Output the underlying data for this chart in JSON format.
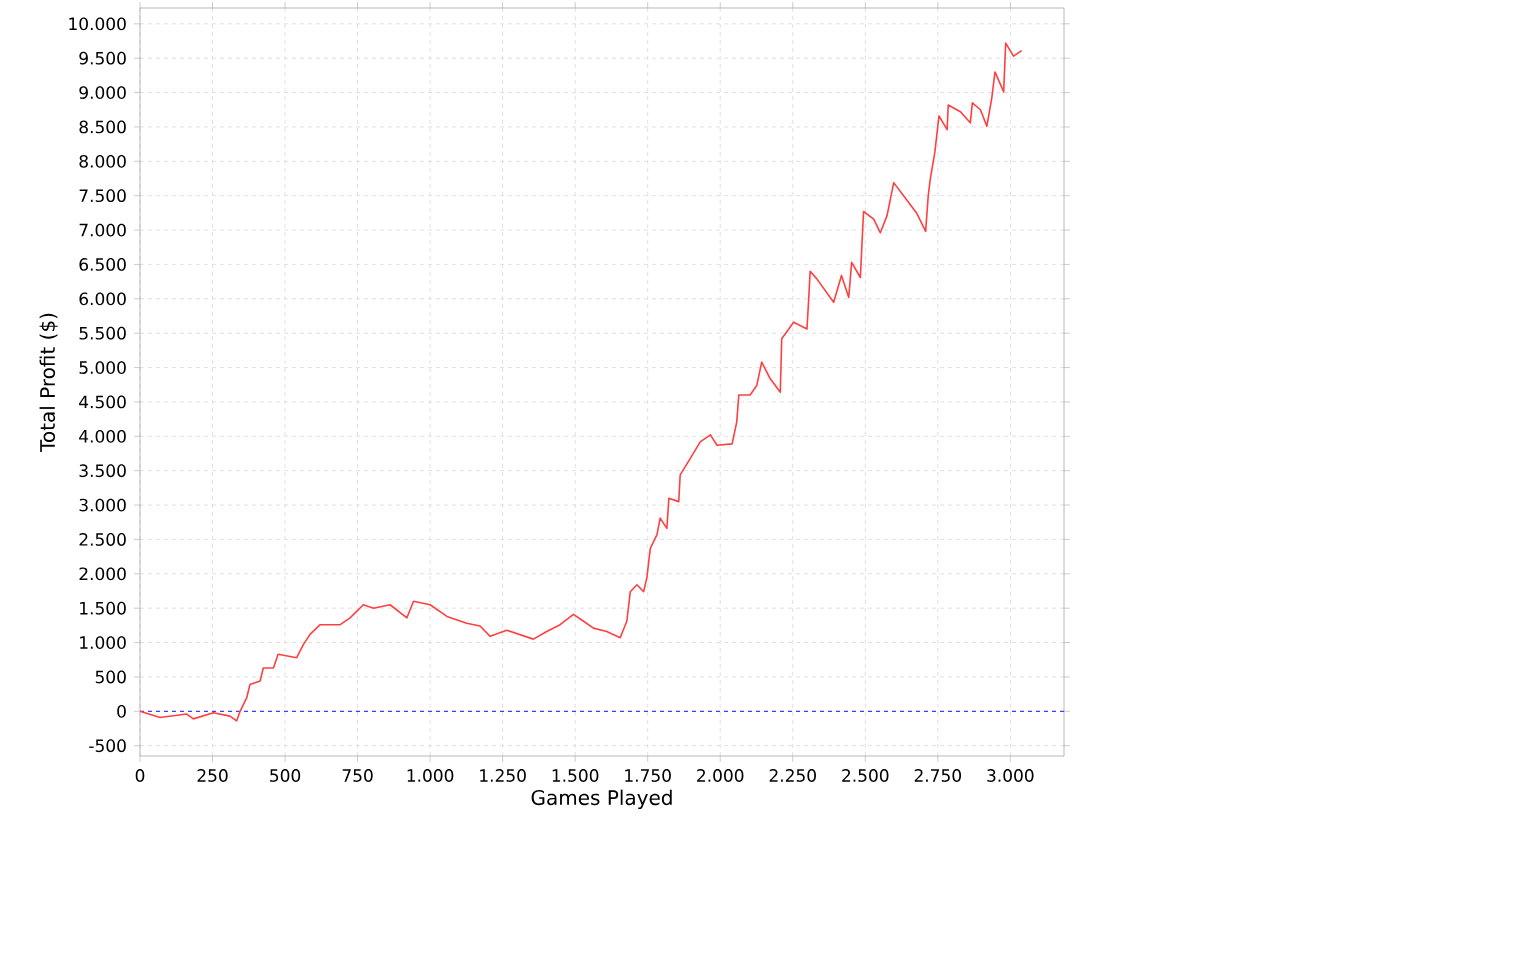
{
  "chart_data": {
    "type": "line",
    "xlabel": "Games Played",
    "ylabel": "Total Profit ($)",
    "x": [
      0,
      69,
      161,
      184,
      253,
      310,
      333,
      345,
      368,
      379,
      414,
      425,
      460,
      476,
      540,
      563,
      586,
      621,
      690,
      724,
      770,
      805,
      862,
      920,
      943,
      1000,
      1058,
      1126,
      1172,
      1207,
      1264,
      1356,
      1402,
      1448,
      1494,
      1529,
      1563,
      1609,
      1655,
      1678,
      1690,
      1713,
      1736,
      1747,
      1759,
      1782,
      1793,
      1816,
      1823,
      1857,
      1862,
      1897,
      1931,
      1966,
      1989,
      2041,
      2057,
      2064,
      2103,
      2126,
      2143,
      2172,
      2207,
      2212,
      2253,
      2299,
      2305,
      2310,
      2333,
      2391,
      2418,
      2443,
      2453,
      2483,
      2494,
      2529,
      2552,
      2575,
      2598,
      2632,
      2678,
      2708,
      2717,
      2724,
      2740,
      2754,
      2782,
      2786,
      2828,
      2862,
      2869,
      2897,
      2919,
      2936,
      2947,
      2977,
      2984,
      3011,
      3039
    ],
    "series": [
      {
        "color": "#ff4040",
        "line_style": "solid",
        "values": [
          0,
          -90,
          -40,
          -110,
          -20,
          -70,
          -140,
          0,
          200,
          390,
          440,
          630,
          630,
          830,
          780,
          970,
          1120,
          1260,
          1260,
          1360,
          1550,
          1500,
          1550,
          1360,
          1600,
          1550,
          1380,
          1280,
          1240,
          1090,
          1180,
          1050,
          1160,
          1260,
          1410,
          1310,
          1210,
          1160,
          1070,
          1310,
          1740,
          1840,
          1740,
          1940,
          2370,
          2570,
          2810,
          2660,
          3100,
          3050,
          3440,
          3680,
          3920,
          4020,
          3870,
          3890,
          4210,
          4600,
          4600,
          4740,
          5080,
          4840,
          4640,
          5420,
          5660,
          5560,
          6000,
          6400,
          6290,
          5950,
          6340,
          6020,
          6530,
          6310,
          7270,
          7160,
          6960,
          7210,
          7690,
          7500,
          7240,
          6980,
          7500,
          7740,
          8140,
          8660,
          8460,
          8820,
          8720,
          8560,
          8850,
          8750,
          8510,
          8920,
          9300,
          9010,
          9720,
          9530,
          9610
        ]
      }
    ],
    "xlim": [
      0,
      3185
    ],
    "ylim": [
      -650,
      10230
    ],
    "xticks": [
      0,
      250,
      500,
      750,
      {
        "value": 1000,
        "label": "1.000"
      },
      {
        "value": 1250,
        "label": "1.250"
      },
      {
        "value": 1500,
        "label": "1.500"
      },
      {
        "value": 1750,
        "label": "1.750"
      },
      {
        "value": 2000,
        "label": "2.000"
      },
      {
        "value": 2250,
        "label": "2.250"
      },
      {
        "value": 2500,
        "label": "2.500"
      },
      {
        "value": 2750,
        "label": "2.750"
      },
      {
        "value": 3000,
        "label": "3.000"
      }
    ],
    "yticks": [
      -500,
      0,
      500,
      {
        "value": 1000,
        "label": "1.000"
      },
      {
        "value": 1500,
        "label": "1.500"
      },
      {
        "value": 2000,
        "label": "2.000"
      },
      {
        "value": 2500,
        "label": "2.500"
      },
      {
        "value": 3000,
        "label": "3.000"
      },
      {
        "value": 3500,
        "label": "3.500"
      },
      {
        "value": 4000,
        "label": "4.000"
      },
      {
        "value": 4500,
        "label": "4.500"
      },
      {
        "value": 5000,
        "label": "5.000"
      },
      {
        "value": 5500,
        "label": "5.500"
      },
      {
        "value": 6000,
        "label": "6.000"
      },
      {
        "value": 6500,
        "label": "6.500"
      },
      {
        "value": 7000,
        "label": "7.000"
      },
      {
        "value": 7500,
        "label": "7.500"
      },
      {
        "value": 8000,
        "label": "8.000"
      },
      {
        "value": 8500,
        "label": "8.500"
      },
      {
        "value": 9000,
        "label": "9.000"
      },
      {
        "value": 9500,
        "label": "9.500"
      },
      {
        "value": 10000,
        "label": "10.000"
      }
    ],
    "grid": true,
    "ref_lines": [
      {
        "axis": "y",
        "value": 0,
        "color": "#4040ff",
        "line_style": "dashed"
      }
    ]
  }
}
